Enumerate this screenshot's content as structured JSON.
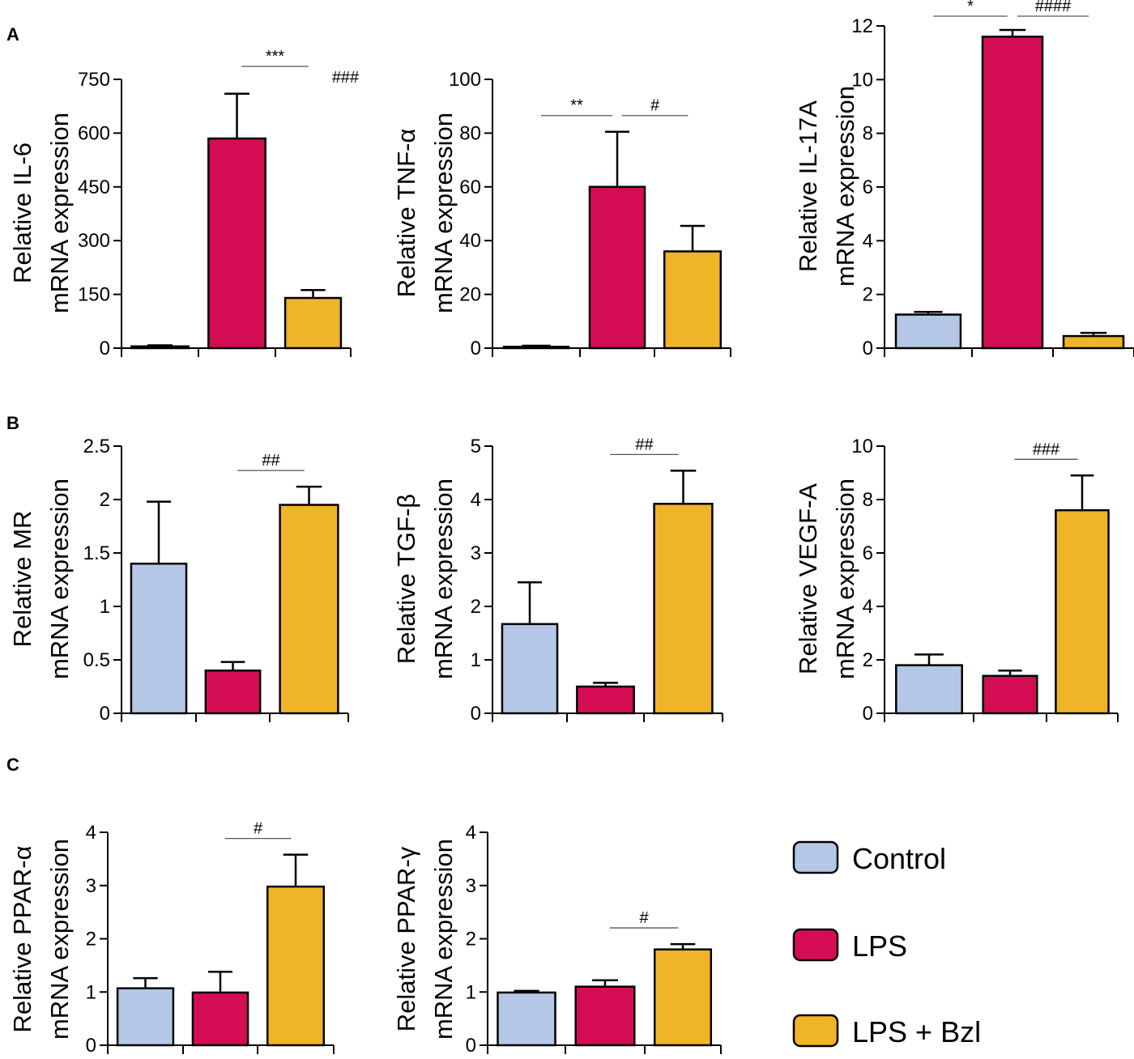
{
  "panel_labels": [
    "A",
    "B",
    "C"
  ],
  "colors": {
    "control": "#b4c7e7",
    "lps": "#d40d55",
    "lps_bzl": "#f0b429",
    "axis": "#000000"
  },
  "legend": [
    {
      "label": "Control",
      "color": "#b4c7e7"
    },
    {
      "label": "LPS",
      "color": "#d40d55"
    },
    {
      "label": "LPS + Bzl",
      "color": "#f0b429"
    }
  ],
  "chart_data": [
    {
      "type": "bar",
      "panel": "A",
      "id": "il6",
      "ylabel_line1": "Relative IL-6",
      "ylabel_line2": "mRNA expression",
      "categories": [
        "Control",
        "LPS",
        "LPS + Bzl"
      ],
      "values": [
        5,
        585,
        140
      ],
      "errors": [
        3,
        125,
        22
      ],
      "ylim": [
        0,
        750
      ],
      "ticks": [
        0,
        150,
        300,
        450,
        600,
        750
      ],
      "tick_labels": [
        "0",
        "150",
        "300",
        "450",
        "600",
        "750"
      ],
      "significance": [
        {
          "from": 1,
          "to": 2,
          "label": "***"
        },
        {
          "at": 2,
          "label": "###"
        }
      ]
    },
    {
      "type": "bar",
      "panel": "A",
      "id": "tnf",
      "ylabel_line1": "Relative TNF-α",
      "ylabel_line2": "mRNA expression",
      "categories": [
        "Control",
        "LPS",
        "LPS + Bzl"
      ],
      "values": [
        0.5,
        60,
        36
      ],
      "errors": [
        0.4,
        20.5,
        9.5
      ],
      "ylim": [
        0,
        100
      ],
      "ticks": [
        0,
        20,
        40,
        60,
        80,
        100
      ],
      "tick_labels": [
        "0",
        "20",
        "40",
        "60",
        "80",
        "100"
      ],
      "significance": [
        {
          "from": 0,
          "to": 1,
          "label": "**"
        },
        {
          "from": 1,
          "to": 2,
          "label": "#"
        }
      ]
    },
    {
      "type": "bar",
      "panel": "A",
      "id": "il17a",
      "ylabel_line1": "Relative IL-17A",
      "ylabel_line2": "mRNA expression",
      "categories": [
        "Control",
        "LPS",
        "LPS + Bzl"
      ],
      "values": [
        1.25,
        11.6,
        0.45
      ],
      "errors": [
        0.1,
        0.25,
        0.12
      ],
      "ylim": [
        0,
        12
      ],
      "ticks": [
        0,
        2,
        4,
        6,
        8,
        10,
        12
      ],
      "tick_labels": [
        "0",
        "2",
        "4",
        "6",
        "8",
        "10",
        "12"
      ],
      "significance": [
        {
          "from": 0,
          "to": 1,
          "label": "*"
        },
        {
          "from": 1,
          "to": 2,
          "label": "####"
        }
      ]
    },
    {
      "type": "bar",
      "panel": "B",
      "id": "mr",
      "ylabel_line1": "Relative MR",
      "ylabel_line2": "mRNA expression",
      "categories": [
        "Control",
        "LPS",
        "LPS + Bzl"
      ],
      "values": [
        1.4,
        0.4,
        1.95
      ],
      "errors": [
        0.58,
        0.08,
        0.17
      ],
      "ylim": [
        0,
        2.5
      ],
      "ticks": [
        0,
        0.5,
        1,
        1.5,
        2,
        2.5
      ],
      "tick_labels": [
        "0",
        "0.5",
        "1",
        "1.5",
        "2",
        "2.5"
      ],
      "significance": [
        {
          "from": 1,
          "to": 2,
          "label": "##"
        }
      ]
    },
    {
      "type": "bar",
      "panel": "B",
      "id": "tgf",
      "ylabel_line1": "Relative TGF-β",
      "ylabel_line2": "mRNA expression",
      "categories": [
        "Control",
        "LPS",
        "LPS + Bzl"
      ],
      "values": [
        1.67,
        0.5,
        3.92
      ],
      "errors": [
        0.78,
        0.07,
        0.62
      ],
      "ylim": [
        0,
        5
      ],
      "ticks": [
        0,
        1,
        2,
        3,
        4,
        5
      ],
      "tick_labels": [
        "0",
        "1",
        "2",
        "3",
        "4",
        "5"
      ],
      "significance": [
        {
          "from": 1,
          "to": 2,
          "label": "##"
        }
      ]
    },
    {
      "type": "bar",
      "panel": "B",
      "id": "vegf",
      "ylabel_line1": "Relative VEGF-A",
      "ylabel_line2": "mRNA expression",
      "categories": [
        "Control",
        "LPS",
        "LPS + Bzl"
      ],
      "values": [
        1.8,
        1.4,
        7.6
      ],
      "errors": [
        0.4,
        0.2,
        1.3
      ],
      "ylim": [
        0,
        10
      ],
      "ticks": [
        0,
        2,
        4,
        6,
        8,
        10
      ],
      "tick_labels": [
        "0",
        "2",
        "4",
        "6",
        "8",
        "10"
      ],
      "significance": [
        {
          "from": 1,
          "to": 2,
          "label": "###"
        }
      ]
    },
    {
      "type": "bar",
      "panel": "C",
      "id": "ppara",
      "ylabel_line1": "Relative PPAR-α",
      "ylabel_line2": "mRNA expression",
      "categories": [
        "Control",
        "LPS",
        "LPS + Bzl"
      ],
      "values": [
        1.07,
        0.99,
        2.98
      ],
      "errors": [
        0.19,
        0.39,
        0.6
      ],
      "ylim": [
        0,
        4
      ],
      "ticks": [
        0,
        1,
        2,
        3,
        4
      ],
      "tick_labels": [
        "0",
        "1",
        "2",
        "3",
        "4"
      ],
      "significance": [
        {
          "from": 1,
          "to": 2,
          "label": "#"
        }
      ]
    },
    {
      "type": "bar",
      "panel": "C",
      "id": "pparg",
      "ylabel_line1": "Relative PPAR-γ",
      "ylabel_line2": "mRNA expression",
      "categories": [
        "Control",
        "LPS",
        "LPS + Bzl"
      ],
      "values": [
        0.99,
        1.1,
        1.8
      ],
      "errors": [
        0.03,
        0.12,
        0.1
      ],
      "ylim": [
        0,
        4
      ],
      "ticks": [
        0,
        1,
        2,
        3,
        4
      ],
      "tick_labels": [
        "0",
        "1",
        "2",
        "3",
        "4"
      ],
      "significance": [
        {
          "from": 1,
          "to": 2,
          "label": "#"
        }
      ]
    }
  ]
}
